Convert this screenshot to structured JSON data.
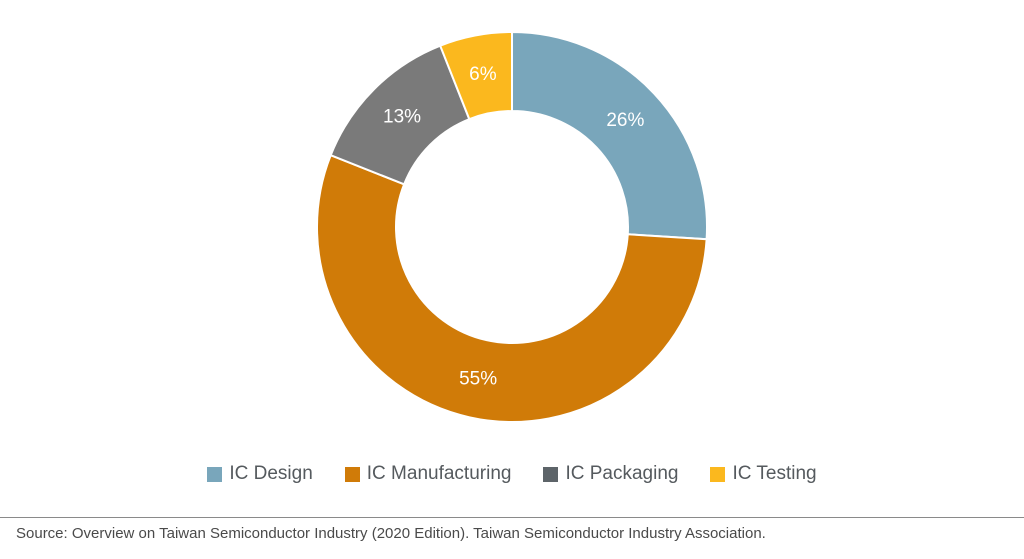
{
  "chart_data": {
    "type": "pie",
    "variant": "donut",
    "categories": [
      "IC Design",
      "IC Manufacturing",
      "IC Packaging",
      "IC Testing"
    ],
    "values": [
      26,
      55,
      13,
      6
    ],
    "value_labels": [
      "26%",
      "55%",
      "13%",
      "6%"
    ],
    "colors": [
      "#79a6bb",
      "#d07b08",
      "#7a7a7a",
      "#fbb81e"
    ],
    "legend_colors": [
      "#79a6bb",
      "#d07b08",
      "#5d6469",
      "#fbb81e"
    ],
    "start_angle_deg": 0,
    "direction": "clockwise",
    "legend_position": "bottom"
  },
  "legend": {
    "items": [
      {
        "label": "IC Design"
      },
      {
        "label": "IC Manufacturing"
      },
      {
        "label": "IC Packaging"
      },
      {
        "label": "IC Testing"
      }
    ]
  },
  "footer": {
    "source": "Source: Overview on Taiwan Semiconductor Industry (2020 Edition). Taiwan Semiconductor Industry Association."
  }
}
